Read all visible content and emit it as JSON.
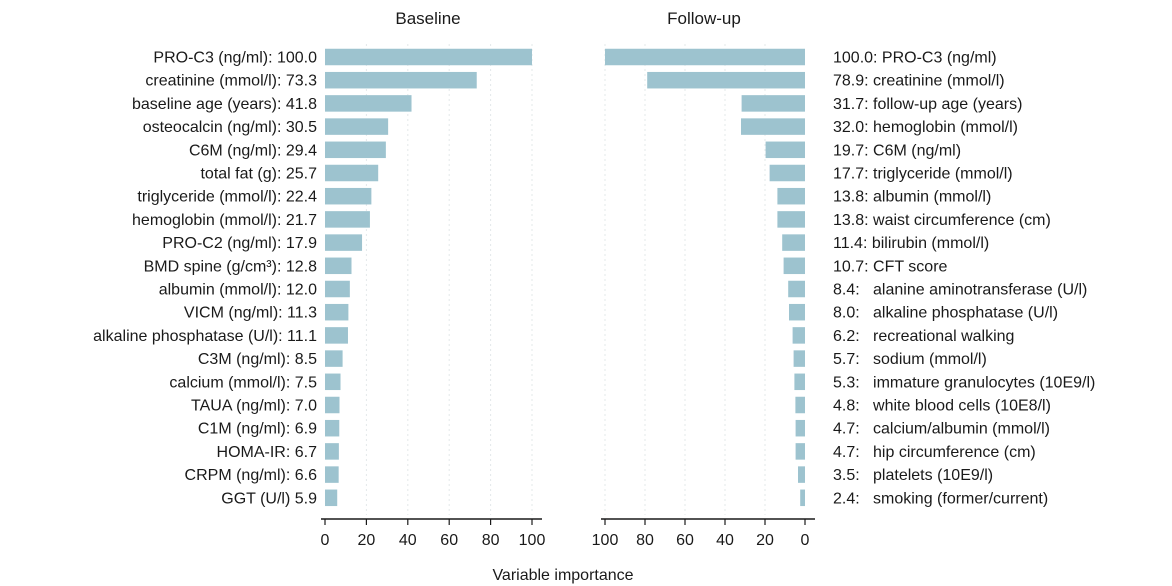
{
  "chart_data": [
    {
      "type": "bar",
      "orientation": "horizontal",
      "title": "Baseline",
      "xlim": [
        0,
        100
      ],
      "xticks": [
        0,
        20,
        40,
        60,
        80,
        100
      ],
      "grid": true,
      "categories": [
        "PRO-C3 (ng/ml): 100.0",
        "creatinine (mmol/l): 73.3",
        "baseline age (years): 41.8",
        "osteocalcin (ng/ml): 30.5",
        "C6M (ng/ml): 29.4",
        "total fat (g): 25.7",
        "triglyceride (mmol/l): 22.4",
        "hemoglobin (mmol/l): 21.7",
        "PRO-C2 (ng/ml): 17.9",
        "BMD spine (g/cm³): 12.8",
        "albumin (mmol/l): 12.0",
        "VICM (ng/ml): 11.3",
        "alkaline phosphatase (U/l): 11.1",
        "C3M (ng/ml): 8.5",
        "calcium (mmol/l): 7.5",
        "TAUA (ng/ml): 7.0",
        "C1M (ng/ml): 6.9",
        "HOMA-IR: 6.7",
        "CRPM (ng/ml): 6.6",
        "GGT (U/l) 5.9"
      ],
      "values": [
        100.0,
        73.3,
        41.8,
        30.5,
        29.4,
        25.7,
        22.4,
        21.7,
        17.9,
        12.8,
        12.0,
        11.3,
        11.1,
        8.5,
        7.5,
        7.0,
        6.9,
        6.7,
        6.6,
        5.9
      ]
    },
    {
      "type": "bar",
      "orientation": "horizontal",
      "direction": "reversed",
      "title": "Follow-up",
      "xlim": [
        100,
        0
      ],
      "xticks": [
        100,
        80,
        60,
        40,
        20,
        0
      ],
      "grid": true,
      "categories": [
        "100.0: PRO-C3 (ng/ml)",
        "78.9: creatinine (mmol/l)",
        "31.7: follow-up age (years)",
        "32.0: hemoglobin (mmol/l)",
        "19.7: C6M (ng/ml)",
        "17.7: triglyceride (mmol/l)",
        "13.8: albumin (mmol/l)",
        "13.8: waist circumference (cm)",
        "11.4: bilirubin (mmol/l)",
        "10.7: CFT score",
        "8.4:   alanine aminotransferase (U/l)",
        "8.0:   alkaline phosphatase (U/l)",
        "6.2:   recreational walking",
        "5.7:   sodium (mmol/l)",
        "5.3:   immature granulocytes (10E9/l)",
        "4.8:   white blood cells (10E8/l)",
        "4.7:   calcium/albumin (mmol/l)",
        "4.7:   hip circumference (cm)",
        "3.5:   platelets (10E9/l)",
        "2.4:   smoking (former/current)"
      ],
      "values": [
        100.0,
        78.9,
        31.7,
        32.0,
        19.7,
        17.7,
        13.8,
        13.8,
        11.4,
        10.7,
        8.4,
        8.0,
        6.2,
        5.7,
        5.3,
        4.8,
        4.7,
        4.7,
        3.5,
        2.4
      ]
    }
  ],
  "shared_xlabel": "Variable importance"
}
